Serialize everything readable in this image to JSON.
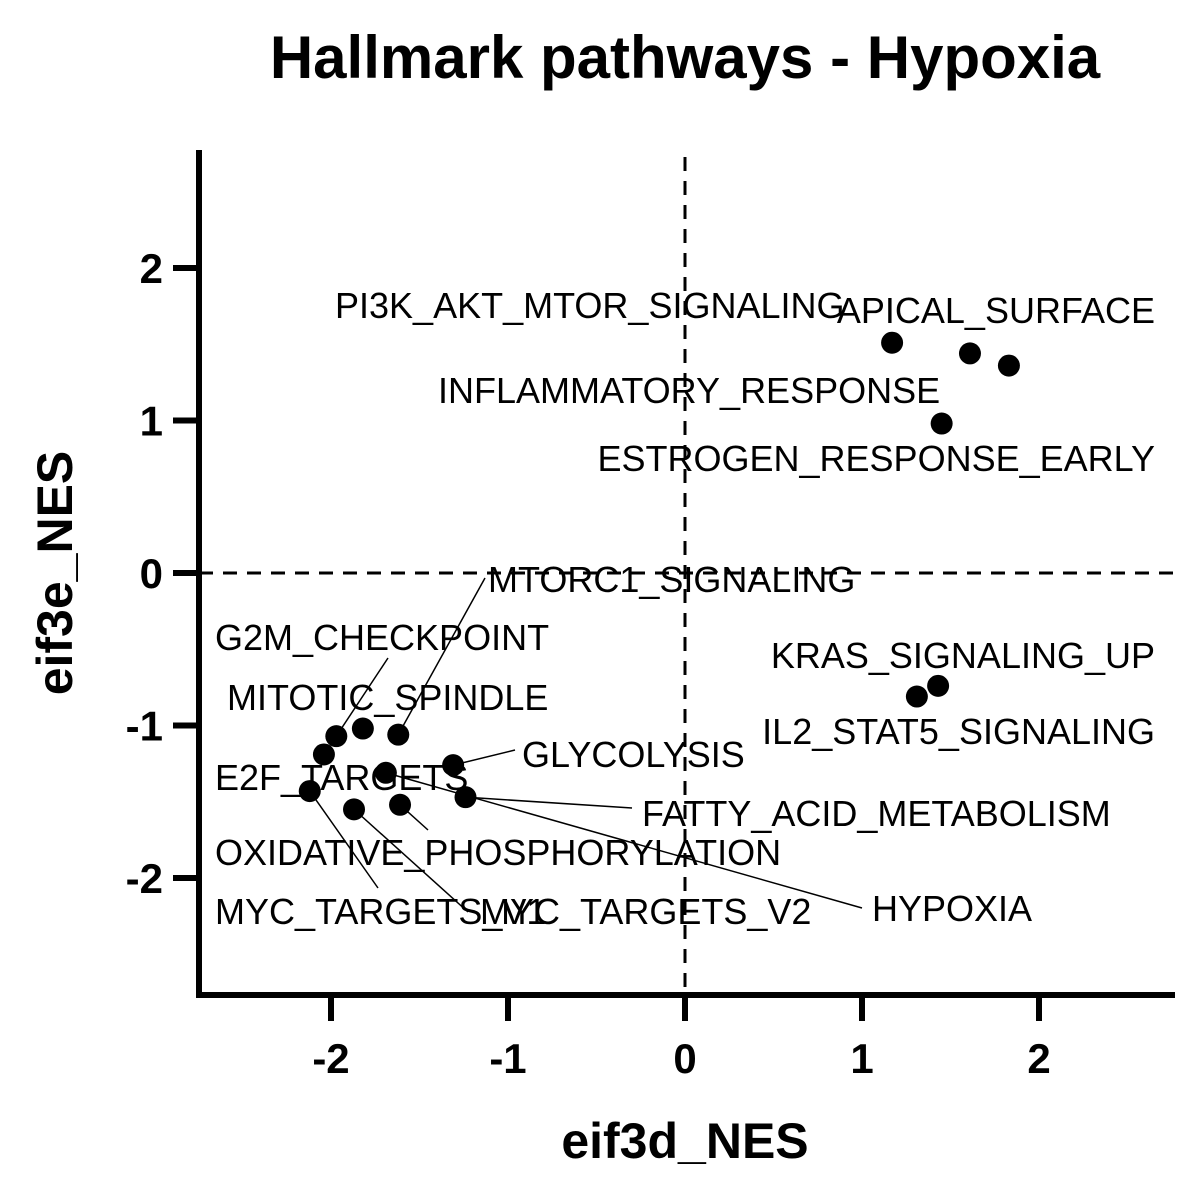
{
  "chart_data": {
    "type": "scatter",
    "title": "Hallmark pathways - Hypoxia",
    "xlabel": "eif3d_NES",
    "ylabel": "eif3e_NES",
    "xlim": [
      -2.75,
      2.75
    ],
    "ylim": [
      -2.75,
      2.75
    ],
    "xticks": [
      "-2",
      "-1",
      "0",
      "1",
      "2"
    ],
    "yticks": [
      "-2",
      "-1",
      "0",
      "1",
      "2"
    ],
    "reference_lines": {
      "x": 0,
      "y": 0,
      "style": "dashed"
    },
    "grid": false,
    "legend": "none",
    "marker_color": "#000000",
    "points": [
      {
        "label": "PI3K_AKT_MTOR_SIGNALING",
        "x": 1.17,
        "y": 1.51
      },
      {
        "label": "APICAL_SURFACE",
        "x": 1.61,
        "y": 1.44
      },
      {
        "label": "INFLAMMATORY_RESPONSE",
        "x": 1.83,
        "y": 1.36
      },
      {
        "label": "ESTROGEN_RESPONSE_EARLY",
        "x": 1.45,
        "y": 0.98
      },
      {
        "label": "KRAS_SIGNALING_UP",
        "x": 1.43,
        "y": -0.74
      },
      {
        "label": "IL2_STAT5_SIGNALING",
        "x": 1.31,
        "y": -0.81
      },
      {
        "label": "MTORC1_SIGNALING",
        "x": -1.62,
        "y": -1.06
      },
      {
        "label": "G2M_CHECKPOINT",
        "x": -1.97,
        "y": -1.07
      },
      {
        "label": "MITOTIC_SPINDLE",
        "x": -1.82,
        "y": -1.02
      },
      {
        "label": "GLYCOLYSIS",
        "x": -1.31,
        "y": -1.26
      },
      {
        "label": "E2F_TARGETS",
        "x": -2.04,
        "y": -1.19
      },
      {
        "label": "FATTY_ACID_METABOLISM",
        "x": -1.24,
        "y": -1.47
      },
      {
        "label": "OXIDATIVE_PHOSPHORYLATION",
        "x": -1.61,
        "y": -1.52
      },
      {
        "label": "MYC_TARGETS_V1",
        "x": -2.12,
        "y": -1.43
      },
      {
        "label": "MYC_TARGETS_V2",
        "x": -1.87,
        "y": -1.55
      },
      {
        "label": "HYPOXIA",
        "x": -1.69,
        "y": -1.31
      }
    ]
  }
}
